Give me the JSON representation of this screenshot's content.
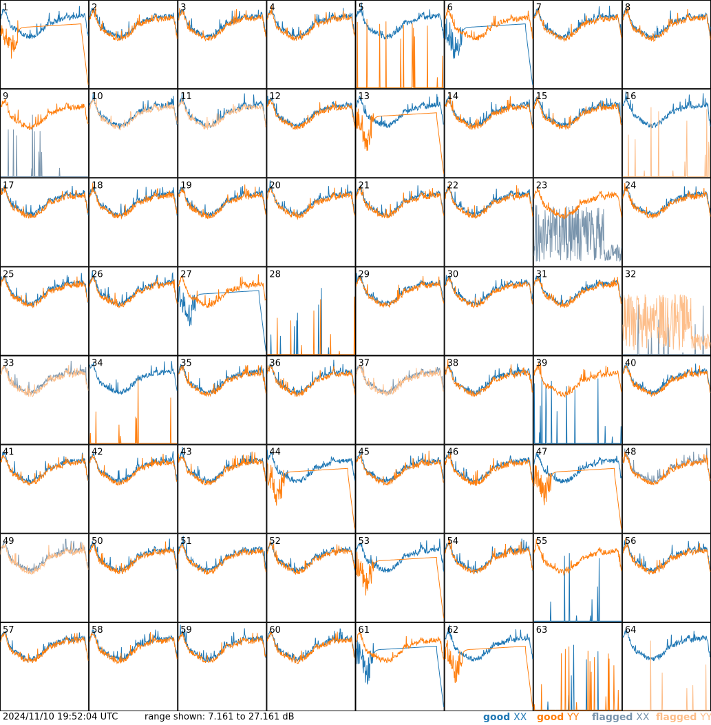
{
  "footer": {
    "timestamp": "2024/11/10 19:52:04 UTC",
    "range_text": "range shown: 7.161 to 27.161 dB"
  },
  "legend": [
    {
      "quality": "good",
      "pol": "XX",
      "color": "#1f77b4"
    },
    {
      "quality": "good",
      "pol": "YY",
      "color": "#ff7f0e"
    },
    {
      "quality": "flagged",
      "pol": "XX",
      "color": "#7a95ad"
    },
    {
      "quality": "flagged",
      "pol": "YY",
      "color": "#fdbe8a"
    }
  ],
  "chart_data": {
    "type": "line",
    "grid": {
      "rows": 8,
      "cols": 8
    },
    "ylim_db": [
      7.161,
      27.161
    ],
    "series_colors": {
      "good_XX": "#1f77b4",
      "good_YY": "#ff7f0e",
      "flagged_XX": "#7a95ad",
      "flagged_YY": "#fdbe8a"
    },
    "tiles": [
      {
        "id": "1",
        "XX": "good",
        "YY": "good",
        "xx_shape": "normal",
        "yy_shape": "dropoff"
      },
      {
        "id": "2",
        "XX": "good",
        "YY": "good",
        "xx_shape": "normal",
        "yy_shape": "normal"
      },
      {
        "id": "3",
        "XX": "good",
        "YY": "good",
        "xx_shape": "normal",
        "yy_shape": "normal"
      },
      {
        "id": "4",
        "XX": "good",
        "YY": "good",
        "xx_shape": "normal",
        "yy_shape": "normal"
      },
      {
        "id": "5",
        "XX": "good",
        "YY": "good",
        "xx_shape": "normal",
        "yy_shape": "dead"
      },
      {
        "id": "6",
        "XX": "good",
        "YY": "good",
        "xx_shape": "dropoff",
        "yy_shape": "normal"
      },
      {
        "id": "7",
        "XX": "good",
        "YY": "good",
        "xx_shape": "normal",
        "yy_shape": "normal"
      },
      {
        "id": "8",
        "XX": "good",
        "YY": "good",
        "xx_shape": "normal",
        "yy_shape": "normal"
      },
      {
        "id": "9",
        "XX": "flagged",
        "YY": "good",
        "xx_shape": "dead",
        "yy_shape": "normal"
      },
      {
        "id": "10",
        "XX": "good",
        "YY": "flagged",
        "xx_shape": "normal",
        "yy_shape": "normal"
      },
      {
        "id": "11",
        "XX": "good",
        "YY": "flagged",
        "xx_shape": "normal",
        "yy_shape": "normal"
      },
      {
        "id": "12",
        "XX": "good",
        "YY": "good",
        "xx_shape": "normal",
        "yy_shape": "normal"
      },
      {
        "id": "13",
        "XX": "good",
        "YY": "good",
        "xx_shape": "normal",
        "yy_shape": "dropoff"
      },
      {
        "id": "14",
        "XX": "good",
        "YY": "good",
        "xx_shape": "normal",
        "yy_shape": "normal"
      },
      {
        "id": "15",
        "XX": "good",
        "YY": "good",
        "xx_shape": "normal",
        "yy_shape": "normal"
      },
      {
        "id": "16",
        "XX": "good",
        "YY": "flagged",
        "xx_shape": "normal",
        "yy_shape": "dead"
      },
      {
        "id": "17",
        "XX": "good",
        "YY": "good",
        "xx_shape": "normal",
        "yy_shape": "normal"
      },
      {
        "id": "18",
        "XX": "good",
        "YY": "good",
        "xx_shape": "normal",
        "yy_shape": "normal"
      },
      {
        "id": "19",
        "XX": "good",
        "YY": "good",
        "xx_shape": "normal",
        "yy_shape": "normal"
      },
      {
        "id": "20",
        "XX": "good",
        "YY": "good",
        "xx_shape": "normal",
        "yy_shape": "normal"
      },
      {
        "id": "21",
        "XX": "good",
        "YY": "good",
        "xx_shape": "normal",
        "yy_shape": "normal"
      },
      {
        "id": "22",
        "XX": "good",
        "YY": "good",
        "xx_shape": "normal",
        "yy_shape": "normal"
      },
      {
        "id": "23",
        "XX": "flagged",
        "YY": "good",
        "xx_shape": "noisy",
        "yy_shape": "normal"
      },
      {
        "id": "24",
        "XX": "good",
        "YY": "good",
        "xx_shape": "normal",
        "yy_shape": "normal"
      },
      {
        "id": "25",
        "XX": "good",
        "YY": "good",
        "xx_shape": "normal",
        "yy_shape": "normal"
      },
      {
        "id": "26",
        "XX": "good",
        "YY": "good",
        "xx_shape": "normal",
        "yy_shape": "normal"
      },
      {
        "id": "27",
        "XX": "good",
        "YY": "good",
        "xx_shape": "dropoff",
        "yy_shape": "normal"
      },
      {
        "id": "28",
        "XX": "good",
        "YY": "good",
        "xx_shape": "dead",
        "yy_shape": "dead"
      },
      {
        "id": "29",
        "XX": "good",
        "YY": "good",
        "xx_shape": "normal",
        "yy_shape": "normal"
      },
      {
        "id": "30",
        "XX": "good",
        "YY": "good",
        "xx_shape": "normal",
        "yy_shape": "normal"
      },
      {
        "id": "31",
        "XX": "good",
        "YY": "good",
        "xx_shape": "normal",
        "yy_shape": "normal"
      },
      {
        "id": "32",
        "XX": "flagged",
        "YY": "flagged",
        "xx_shape": "dead",
        "yy_shape": "noisy"
      },
      {
        "id": "33",
        "XX": "flagged",
        "YY": "flagged",
        "xx_shape": "normal",
        "yy_shape": "normal"
      },
      {
        "id": "34",
        "XX": "good",
        "YY": "good",
        "xx_shape": "normal",
        "yy_shape": "dead"
      },
      {
        "id": "35",
        "XX": "good",
        "YY": "good",
        "xx_shape": "normal",
        "yy_shape": "normal"
      },
      {
        "id": "36",
        "XX": "good",
        "YY": "good",
        "xx_shape": "normal",
        "yy_shape": "normal"
      },
      {
        "id": "37",
        "XX": "flagged",
        "YY": "flagged",
        "xx_shape": "normal",
        "yy_shape": "normal"
      },
      {
        "id": "38",
        "XX": "good",
        "YY": "good",
        "xx_shape": "normal",
        "yy_shape": "normal"
      },
      {
        "id": "39",
        "XX": "good",
        "YY": "good",
        "xx_shape": "dead",
        "yy_shape": "normal"
      },
      {
        "id": "40",
        "XX": "good",
        "YY": "good",
        "xx_shape": "normal",
        "yy_shape": "normal"
      },
      {
        "id": "41",
        "XX": "good",
        "YY": "good",
        "xx_shape": "normal",
        "yy_shape": "normal"
      },
      {
        "id": "42",
        "XX": "good",
        "YY": "good",
        "xx_shape": "normal",
        "yy_shape": "normal"
      },
      {
        "id": "43",
        "XX": "good",
        "YY": "good",
        "xx_shape": "normal",
        "yy_shape": "normal"
      },
      {
        "id": "44",
        "XX": "good",
        "YY": "good",
        "xx_shape": "normal",
        "yy_shape": "dropoff"
      },
      {
        "id": "45",
        "XX": "good",
        "YY": "good",
        "xx_shape": "normal",
        "yy_shape": "normal"
      },
      {
        "id": "46",
        "XX": "good",
        "YY": "good",
        "xx_shape": "normal",
        "yy_shape": "normal"
      },
      {
        "id": "47",
        "XX": "good",
        "YY": "good",
        "xx_shape": "normal",
        "yy_shape": "dropoff"
      },
      {
        "id": "48",
        "XX": "flagged",
        "YY": "good",
        "xx_shape": "normal",
        "yy_shape": "normal"
      },
      {
        "id": "49",
        "XX": "flagged",
        "YY": "flagged",
        "xx_shape": "normal",
        "yy_shape": "normal"
      },
      {
        "id": "50",
        "XX": "good",
        "YY": "good",
        "xx_shape": "normal",
        "yy_shape": "normal"
      },
      {
        "id": "51",
        "XX": "good",
        "YY": "good",
        "xx_shape": "normal",
        "yy_shape": "normal"
      },
      {
        "id": "52",
        "XX": "good",
        "YY": "good",
        "xx_shape": "normal",
        "yy_shape": "normal"
      },
      {
        "id": "53",
        "XX": "good",
        "YY": "good",
        "xx_shape": "normal",
        "yy_shape": "dropoff"
      },
      {
        "id": "54",
        "XX": "good",
        "YY": "good",
        "xx_shape": "normal",
        "yy_shape": "normal"
      },
      {
        "id": "55",
        "XX": "good",
        "YY": "good",
        "xx_shape": "dead",
        "yy_shape": "normal"
      },
      {
        "id": "56",
        "XX": "good",
        "YY": "good",
        "xx_shape": "normal",
        "yy_shape": "normal"
      },
      {
        "id": "57",
        "XX": "good",
        "YY": "good",
        "xx_shape": "normal",
        "yy_shape": "normal"
      },
      {
        "id": "58",
        "XX": "good",
        "YY": "good",
        "xx_shape": "normal",
        "yy_shape": "normal"
      },
      {
        "id": "59",
        "XX": "good",
        "YY": "good",
        "xx_shape": "normal",
        "yy_shape": "normal"
      },
      {
        "id": "60",
        "XX": "good",
        "YY": "good",
        "xx_shape": "normal",
        "yy_shape": "normal"
      },
      {
        "id": "61",
        "XX": "good",
        "YY": "good",
        "xx_shape": "dropoff",
        "yy_shape": "normal"
      },
      {
        "id": "62",
        "XX": "good",
        "YY": "good",
        "xx_shape": "normal",
        "yy_shape": "dropoff"
      },
      {
        "id": "63",
        "XX": "good",
        "YY": "good",
        "xx_shape": "dead",
        "yy_shape": "dead"
      },
      {
        "id": "64",
        "XX": "good",
        "YY": "flagged",
        "xx_shape": "normal",
        "yy_shape": "dead"
      }
    ]
  }
}
